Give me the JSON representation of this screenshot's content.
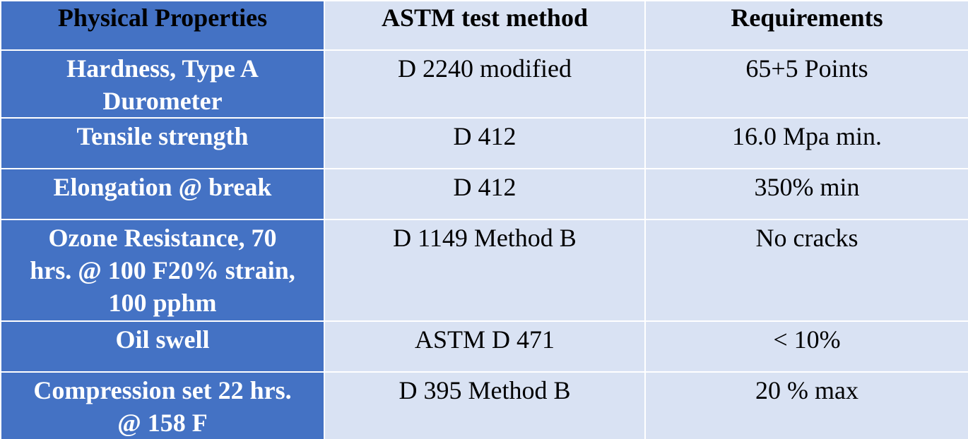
{
  "table": {
    "header": [
      "Physical Properties",
      "ASTM test method",
      "Requirements"
    ],
    "rows": [
      [
        "Hardness, Type A Durometer",
        "D 2240 modified",
        "65+5 Points"
      ],
      [
        "Tensile strength",
        "D 412",
        "16.0 Mpa min."
      ],
      [
        "Elongation @ break",
        "D 412",
        "350% min"
      ],
      [
        "Ozone Resistance, 70 hrs. @ 100 F20% strain, 100 pphm",
        "D 1149 Method B",
        "No cracks"
      ],
      [
        "Oil swell",
        "ASTM D 471",
        "< 10%"
      ],
      [
        "Compression set 22 hrs. @ 158 F",
        "D 395 Method B",
        "20 % max"
      ]
    ]
  }
}
